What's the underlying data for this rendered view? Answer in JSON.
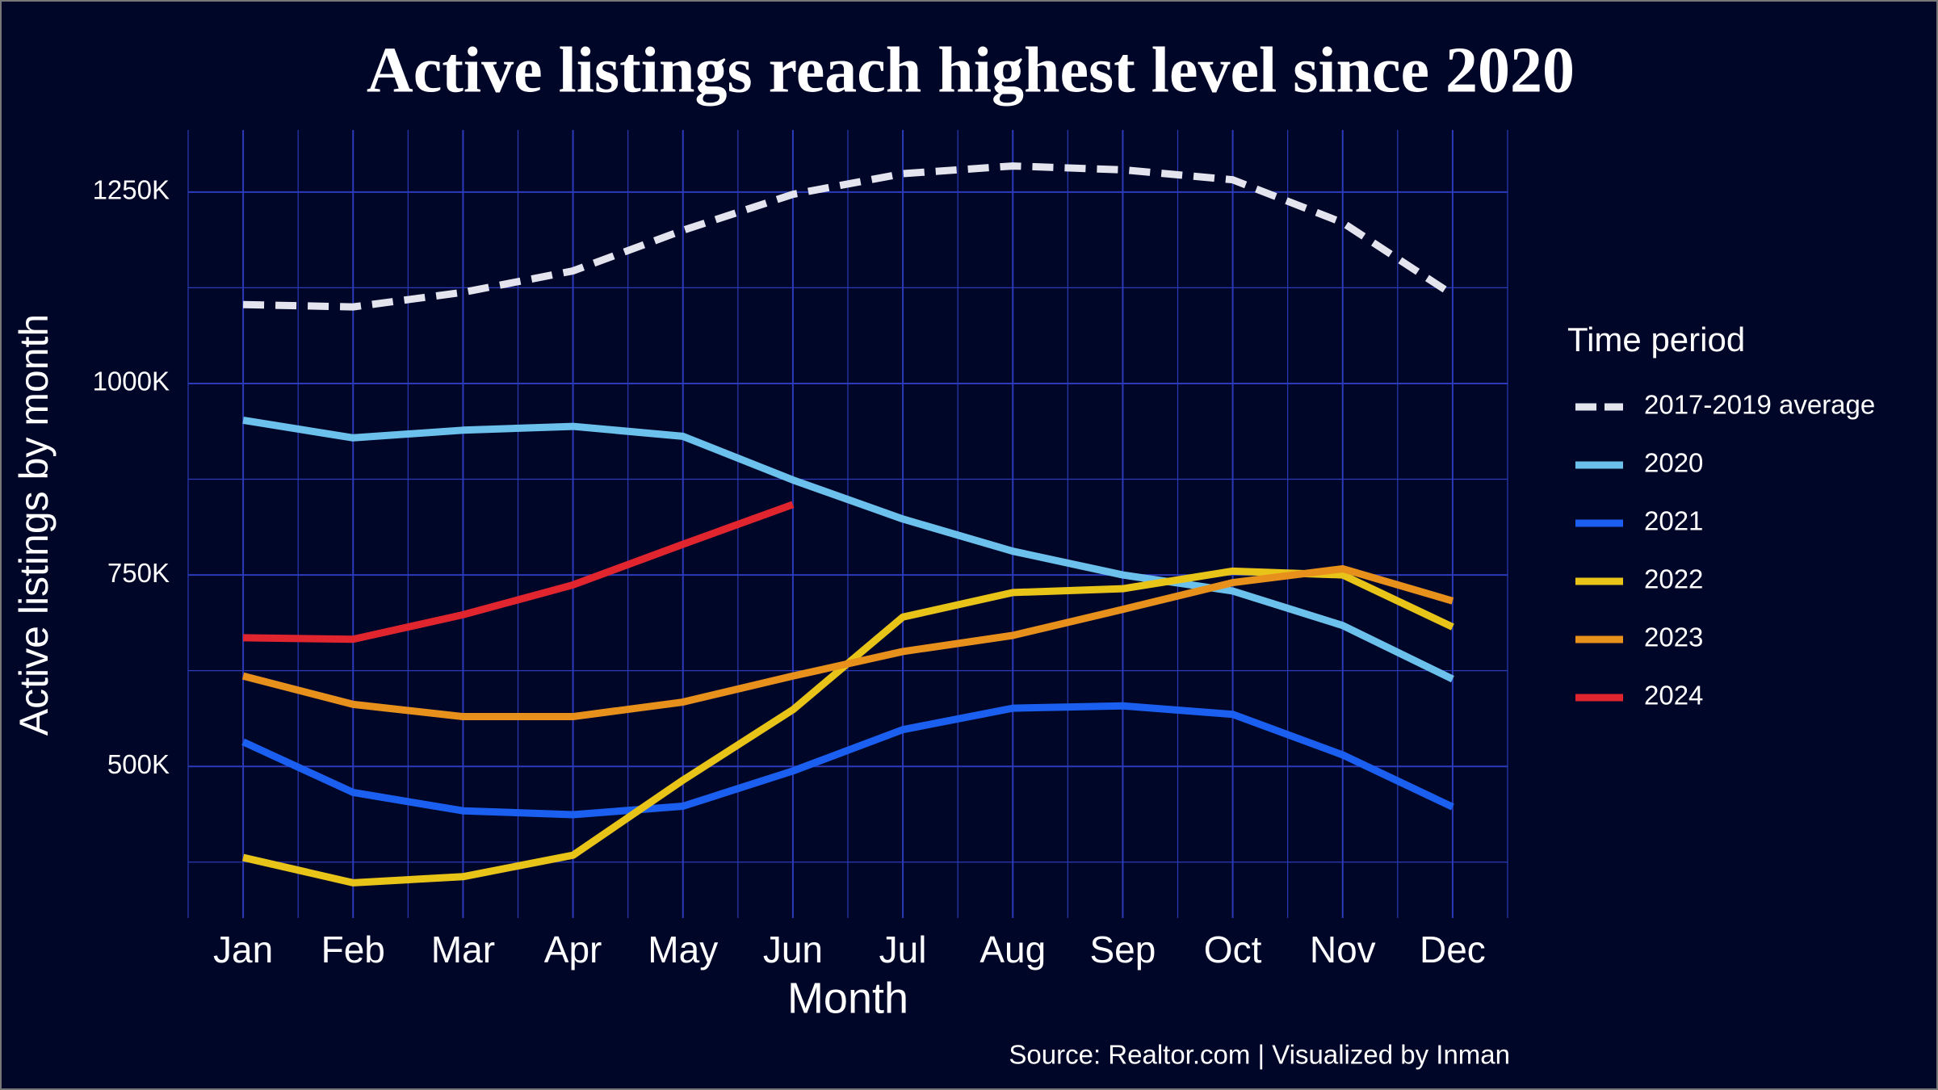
{
  "chart_data": {
    "type": "line",
    "title": "Active listings reach highest level since 2020",
    "xlabel": "Month",
    "ylabel": "Active listings by month",
    "source": "Source: Realtor.com | Visualized by Inman",
    "legend_title": "Time period",
    "legend": "right",
    "grid": true,
    "categories": [
      "Jan",
      "Feb",
      "Mar",
      "Apr",
      "May",
      "Jun",
      "Jul",
      "Aug",
      "Sep",
      "Oct",
      "Nov",
      "Dec"
    ],
    "ylim": [
      302000,
      1331000
    ],
    "yticks": [
      {
        "value": 500000,
        "label": "500K"
      },
      {
        "value": 750000,
        "label": "750K"
      },
      {
        "value": 1000000,
        "label": "1000K"
      },
      {
        "value": 1250000,
        "label": "1250K"
      }
    ],
    "minor_yticks": [
      375000,
      625000,
      875000,
      1125000
    ],
    "series": [
      {
        "name": "2017-2019 average",
        "color": "#e4e4ee",
        "dashed": true,
        "values": [
          1103000,
          1100000,
          1119000,
          1147000,
          1200000,
          1247000,
          1274000,
          1284000,
          1279000,
          1266000,
          1210000,
          1116000
        ]
      },
      {
        "name": "2020",
        "color": "#6cc0ec",
        "values": [
          952000,
          929000,
          939000,
          944000,
          931000,
          874000,
          823000,
          781000,
          750000,
          729000,
          684000,
          614000
        ]
      },
      {
        "name": "2021",
        "color": "#1b5ff0",
        "values": [
          532000,
          466000,
          442000,
          437000,
          448000,
          494000,
          548000,
          576000,
          579000,
          568000,
          515000,
          447000
        ]
      },
      {
        "name": "2022",
        "color": "#e8c418",
        "values": [
          381000,
          348000,
          356000,
          384000,
          482000,
          574000,
          695000,
          727000,
          732000,
          755000,
          750000,
          682000
        ]
      },
      {
        "name": "2023",
        "color": "#e8901c",
        "values": [
          618000,
          581000,
          565000,
          565000,
          584000,
          618000,
          650000,
          671000,
          705000,
          740000,
          758000,
          716000
        ]
      },
      {
        "name": "2024",
        "color": "#e0252f",
        "values": [
          668000,
          666000,
          698000,
          737000,
          790000,
          842000,
          null,
          null,
          null,
          null,
          null,
          null
        ]
      }
    ]
  }
}
